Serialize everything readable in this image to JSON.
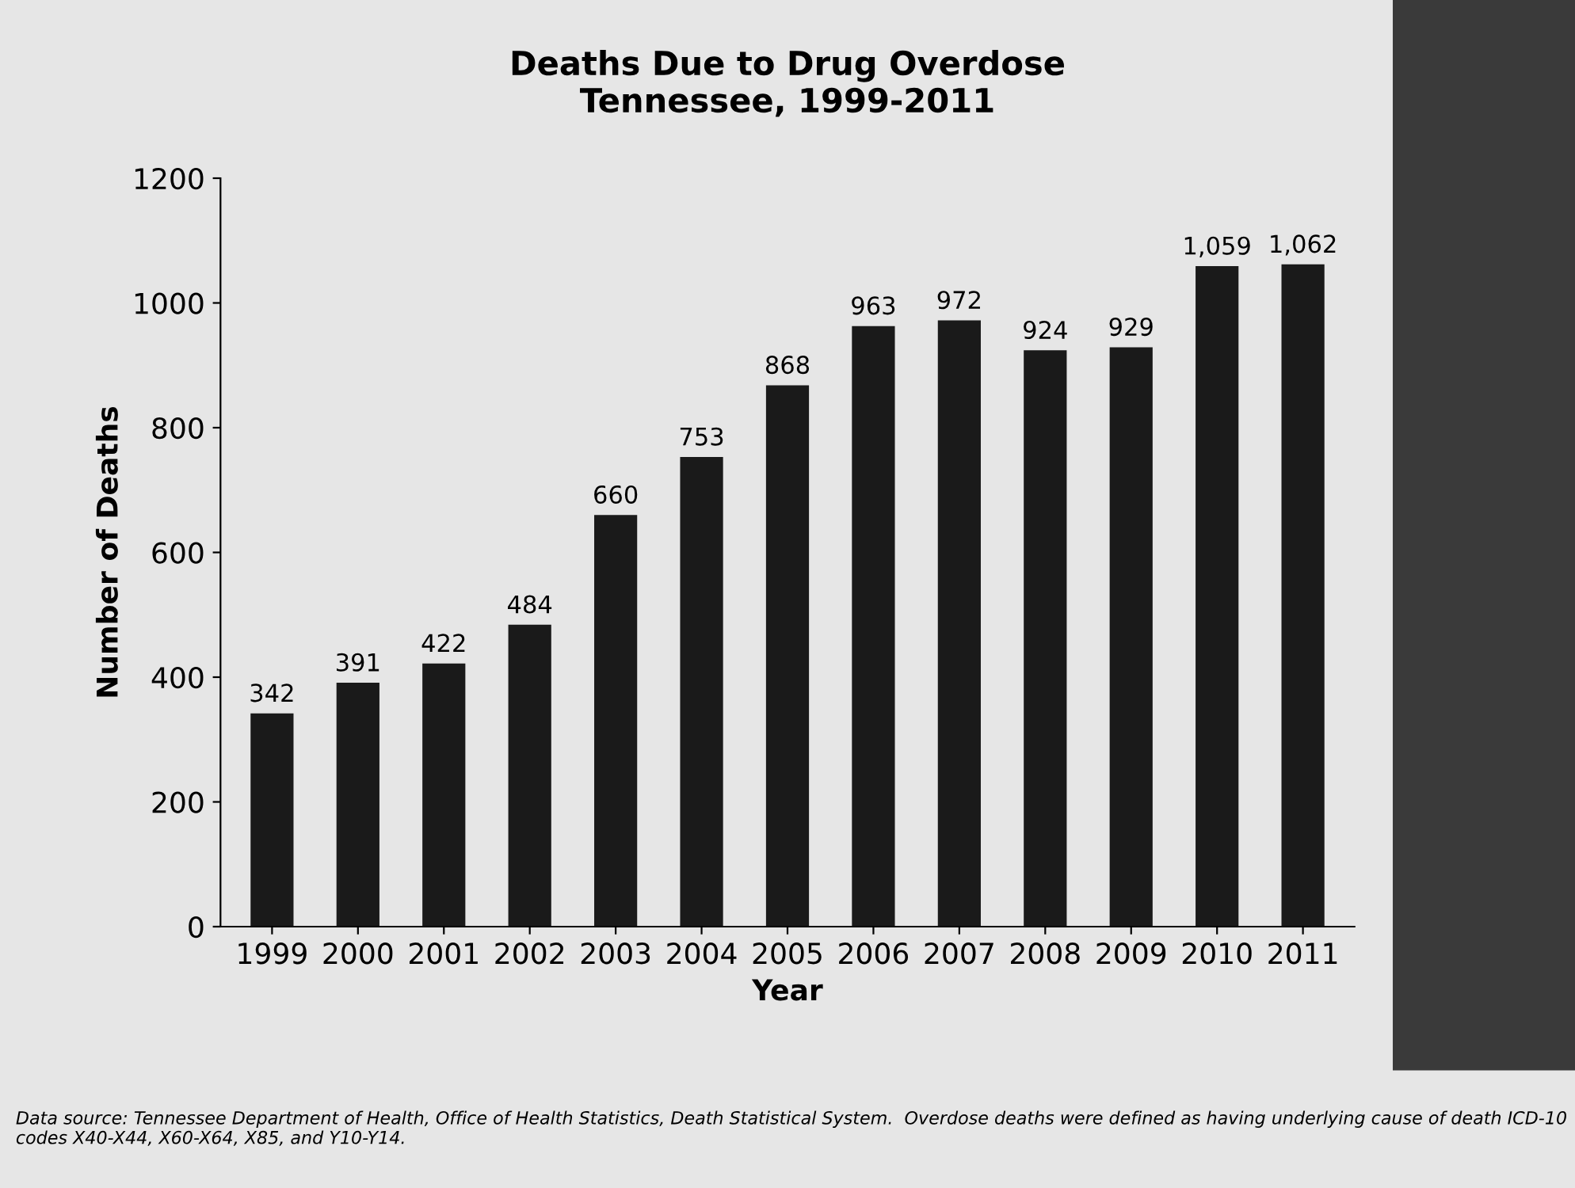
{
  "chart_data": {
    "type": "bar",
    "title": "Deaths Due to Drug Overdose\nTennessee, 1999-2011",
    "xlabel": "Year",
    "ylabel": "Number of Deaths",
    "categories": [
      "1999",
      "2000",
      "2001",
      "2002",
      "2003",
      "2004",
      "2005",
      "2006",
      "2007",
      "2008",
      "2009",
      "2010",
      "2011"
    ],
    "values": [
      342,
      391,
      422,
      484,
      660,
      753,
      868,
      963,
      972,
      924,
      929,
      1059,
      1062
    ],
    "value_labels": [
      "342",
      "391",
      "422",
      "484",
      "660",
      "753",
      "868",
      "963",
      "972",
      "924",
      "929",
      "1,059",
      "1,062"
    ],
    "color": "#1a1a1a",
    "ylim": [
      0,
      1200
    ],
    "yticks": [
      0,
      200,
      400,
      600,
      800,
      1000,
      1200
    ],
    "grid": false,
    "legend": false,
    "annotations": [
      "Data source: Tennessee Department of Health, Office of Health Statistics, Death Statistical System.  Overdose deaths were defined as having underlying cause of death ICD-10 codes X40-X44, X60-X64, X85, and Y10-Y14."
    ]
  }
}
